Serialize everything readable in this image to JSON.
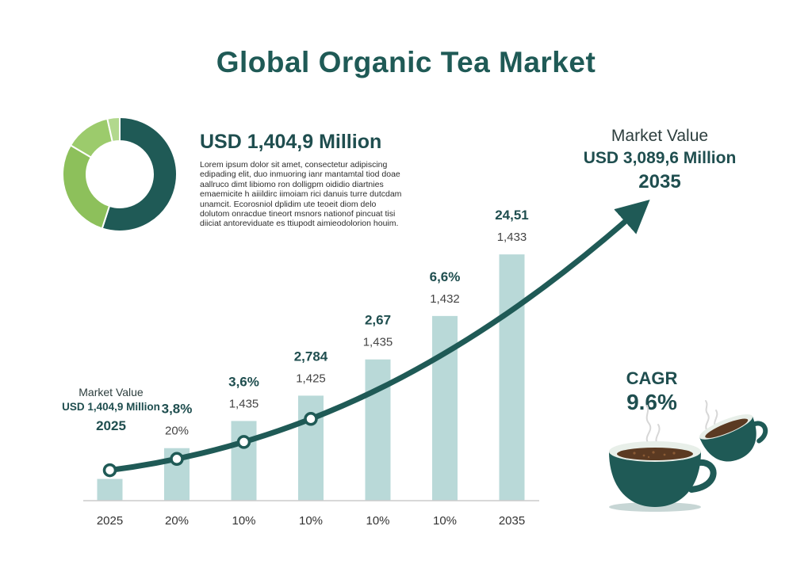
{
  "title": "Global Organic Tea Market",
  "summary": {
    "headline": "USD 1,404,9 Million",
    "body": "Lorem ipsum dolor sit amet, consectetur adipiscing edipading elit, duo inmuoring ianr mantamtal tiod doae aallruco dimt libiomo ron dolligpm oididio diartnies emaemicite h aiiildirc iimoiam rici danuis turre dutcdam unamcit. Ecorosniol dplidim ute teoeit diom delo dolutom onracdue tineort msnors nationof pincuat tisi diiciat antoreviduate es ttiupodt aimieodolorion houim."
  },
  "donut": {
    "segments": [
      {
        "value": 55.0,
        "color": "#1f5a56"
      },
      {
        "value": 28.5,
        "color": "#8dc05b"
      },
      {
        "value": 13.0,
        "color": "#9ccb6c"
      },
      {
        "value": 3.5,
        "color": "#b2d88d"
      }
    ]
  },
  "market_value_start": {
    "label": "Market Value",
    "value": "USD 1,404,9 Million",
    "year": "2025"
  },
  "market_value_end": {
    "label": "Market Value",
    "value": "USD 3,089,6 Million",
    "year": "2035"
  },
  "cagr": {
    "label": "CAGR",
    "value": "9.6%"
  },
  "colors": {
    "bar": "#b9d9d8",
    "line": "#1f5a56",
    "text_dark": "#1f4e4f",
    "axis": "#cccccc"
  },
  "icons": [
    "tea-cup-icon",
    "tea-cup-tilted-icon",
    "steam-icon"
  ],
  "chart_data": {
    "type": "bar",
    "categories": [
      "2025",
      "20%",
      "10%",
      "10%",
      "10%",
      "10%",
      "2035"
    ],
    "values": [
      1.2,
      2.9,
      4.4,
      5.8,
      7.8,
      10.2,
      13.6
    ],
    "bold_labels": [
      "",
      "3,8%",
      "3,6%",
      "2,784",
      "2,67",
      "6,6%",
      "24,51"
    ],
    "sub_labels": [
      "",
      "20%",
      "1,435",
      "1,425",
      "1,435",
      "1,432",
      "1,433"
    ],
    "trend_markers": [
      true,
      true,
      true,
      true,
      false,
      false,
      false
    ],
    "ylim": [
      0,
      14
    ],
    "grid": false
  }
}
